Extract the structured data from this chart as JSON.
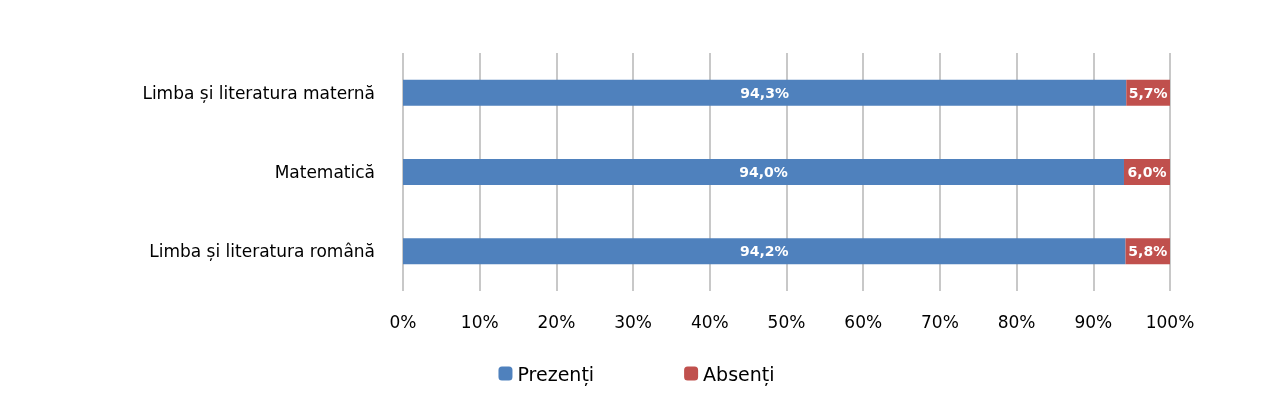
{
  "chart_data": {
    "type": "bar",
    "orientation": "horizontal",
    "stacked": true,
    "categories": [
      "Limba și literatura maternă",
      "Matematică",
      "Limba și literatura română"
    ],
    "series": [
      {
        "name": "Prezenți",
        "color": "#4f81bd",
        "values": [
          94.3,
          94.0,
          94.2
        ],
        "value_labels": [
          "94,3%",
          "94,0%",
          "94,2%"
        ]
      },
      {
        "name": "Absenți",
        "color": "#c0504d",
        "values": [
          5.7,
          6.0,
          5.8
        ],
        "value_labels": [
          "5,7%",
          "6,0%",
          "5,8%"
        ]
      }
    ],
    "xlim": [
      0,
      100
    ],
    "xticks": [
      {
        "value": 0,
        "label": "0%"
      },
      {
        "value": 10,
        "label": "10%"
      },
      {
        "value": 20,
        "label": "20%"
      },
      {
        "value": 30,
        "label": "30%"
      },
      {
        "value": 40,
        "label": "40%"
      },
      {
        "value": 50,
        "label": "50%"
      },
      {
        "value": 60,
        "label": "60%"
      },
      {
        "value": 70,
        "label": "70%"
      },
      {
        "value": 80,
        "label": "80%"
      },
      {
        "value": 90,
        "label": "90%"
      },
      {
        "value": 100,
        "label": "100%"
      }
    ],
    "grid": "x",
    "legend": "bottom"
  }
}
